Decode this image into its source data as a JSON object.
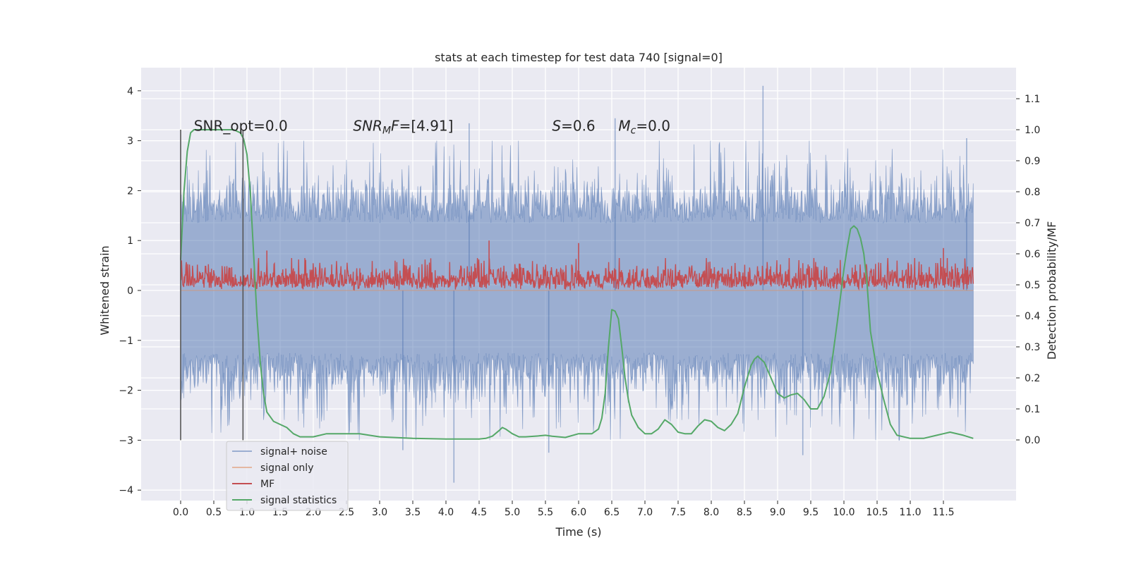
{
  "chart_data": {
    "type": "line",
    "title": "stats at each timestep for test data 740 [signal=0]",
    "xlabel": "Time (s)",
    "ylabel": "Whitened strain",
    "ylabel_right": "Detection probability/MF",
    "xlim": [
      -0.58,
      12.6
    ],
    "ylim": [
      -4.3,
      4.45
    ],
    "ylim_right": [
      -0.2,
      1.2
    ],
    "x_ticks": [
      0.0,
      0.5,
      1.0,
      1.5,
      2.0,
      2.5,
      3.0,
      3.5,
      4.0,
      4.5,
      5.0,
      5.5,
      6.0,
      6.5,
      7.0,
      7.5,
      8.0,
      8.5,
      9.0,
      9.5,
      10.0,
      10.5,
      11.0,
      11.5
    ],
    "x_tick_labels": [
      "0.0",
      "0.5",
      "1.0",
      "1.5",
      "2.0",
      "2.5",
      "3.0",
      "3.5",
      "4.0",
      "4.5",
      "5.0",
      "5.5",
      "6.0",
      "6.5",
      "7.0",
      "7.5",
      "8.0",
      "8.5",
      "9.0",
      "9.5",
      "10.0",
      "10.5",
      "11.0",
      "11.5"
    ],
    "y_ticks": [
      -4,
      -3,
      -2,
      -1,
      0,
      1,
      2,
      3,
      4
    ],
    "y_tick_labels": [
      "−4",
      "−3",
      "−2",
      "−1",
      "0",
      "1",
      "2",
      "3",
      "4"
    ],
    "y_ticks_right": [
      0.0,
      0.1,
      0.2,
      0.3,
      0.4,
      0.5,
      0.6,
      0.7,
      0.8,
      0.9,
      1.0,
      1.1
    ],
    "y_tick_labels_right": [
      "0.0",
      "0.1",
      "0.2",
      "0.3",
      "0.4",
      "0.5",
      "0.6",
      "0.7",
      "0.8",
      "0.9",
      "1.0",
      "1.1"
    ],
    "grid": true,
    "legend_position": "lower-left",
    "annotations": [
      {
        "text": "SNR_opt=0.0",
        "x": 0.2,
        "y": 3.2
      },
      {
        "text": "SNR_M F=[4.91]",
        "x": 2.6,
        "y": 3.2
      },
      {
        "text": "S=0.6",
        "x": 5.6,
        "y": 3.2
      },
      {
        "text": "M_c=0.0",
        "x": 6.6,
        "y": 3.2
      }
    ],
    "window_lines_x": [
      0.0,
      0.94
    ],
    "window_lines_y": [
      -3.0,
      3.22
    ],
    "series": [
      {
        "name": "signal+ noise",
        "color": "#4c72b0",
        "opacity": 0.5,
        "axis": "left",
        "x_range": [
          0.0,
          11.95
        ],
        "band_typical": [
          -1.25,
          1.35
        ],
        "band_peaks": [
          -3.0,
          3.0
        ],
        "spikes": [
          {
            "x": 8.78,
            "y": 4.1
          },
          {
            "x": 6.55,
            "y": 3.45
          },
          {
            "x": 4.35,
            "y": 3.35
          },
          {
            "x": 11.85,
            "y": 3.05
          },
          {
            "x": 4.12,
            "y": -3.85
          },
          {
            "x": 9.38,
            "y": -3.3
          },
          {
            "x": 5.55,
            "y": -3.25
          },
          {
            "x": 3.35,
            "y": -3.2
          }
        ]
      },
      {
        "name": "signal only",
        "color": "#dd8452",
        "opacity": 0.5,
        "axis": "left",
        "x": [
          0.0,
          11.95
        ],
        "y": [
          0.0,
          0.0
        ]
      },
      {
        "name": "MF",
        "color": "#c44e52",
        "opacity": 1.0,
        "axis": "left",
        "x_range": [
          0.0,
          11.95
        ],
        "band": [
          0.0,
          0.65
        ],
        "spikes": [
          {
            "x": 4.65,
            "y": 1.0
          },
          {
            "x": 6.0,
            "y": 0.95
          },
          {
            "x": 11.5,
            "y": 0.85
          },
          {
            "x": 1.3,
            "y": 0.8
          }
        ]
      },
      {
        "name": "signal statistics",
        "color": "#55a868",
        "opacity": 1.0,
        "axis": "right",
        "x": [
          0.0,
          0.05,
          0.1,
          0.15,
          0.2,
          0.3,
          0.5,
          0.8,
          0.9,
          0.95,
          1.0,
          1.05,
          1.1,
          1.15,
          1.2,
          1.25,
          1.3,
          1.4,
          1.5,
          1.6,
          1.7,
          1.8,
          2.0,
          2.2,
          2.4,
          2.7,
          3.0,
          3.5,
          4.0,
          4.5,
          4.6,
          4.7,
          4.8,
          4.85,
          4.9,
          5.0,
          5.1,
          5.2,
          5.4,
          5.5,
          5.6,
          5.8,
          6.0,
          6.2,
          6.3,
          6.35,
          6.4,
          6.45,
          6.5,
          6.55,
          6.6,
          6.65,
          6.7,
          6.75,
          6.8,
          6.9,
          7.0,
          7.1,
          7.2,
          7.3,
          7.4,
          7.5,
          7.6,
          7.7,
          7.8,
          7.9,
          8.0,
          8.1,
          8.2,
          8.3,
          8.4,
          8.5,
          8.6,
          8.65,
          8.7,
          8.8,
          8.9,
          9.0,
          9.1,
          9.2,
          9.3,
          9.4,
          9.5,
          9.6,
          9.7,
          9.8,
          9.9,
          10.0,
          10.05,
          10.1,
          10.15,
          10.2,
          10.25,
          10.3,
          10.35,
          10.4,
          10.5,
          10.6,
          10.7,
          10.8,
          11.0,
          11.2,
          11.4,
          11.5,
          11.6,
          11.8,
          11.95
        ],
        "y": [
          0.58,
          0.8,
          0.93,
          0.99,
          1.0,
          1.0,
          1.0,
          1.0,
          0.99,
          0.97,
          0.92,
          0.8,
          0.6,
          0.4,
          0.25,
          0.15,
          0.09,
          0.06,
          0.05,
          0.04,
          0.02,
          0.01,
          0.01,
          0.02,
          0.02,
          0.02,
          0.01,
          0.005,
          0.003,
          0.003,
          0.005,
          0.012,
          0.03,
          0.04,
          0.035,
          0.02,
          0.01,
          0.01,
          0.013,
          0.015,
          0.012,
          0.008,
          0.02,
          0.02,
          0.035,
          0.07,
          0.15,
          0.3,
          0.42,
          0.415,
          0.39,
          0.3,
          0.2,
          0.13,
          0.08,
          0.04,
          0.02,
          0.02,
          0.035,
          0.065,
          0.05,
          0.025,
          0.02,
          0.02,
          0.045,
          0.065,
          0.06,
          0.04,
          0.03,
          0.05,
          0.085,
          0.17,
          0.24,
          0.26,
          0.27,
          0.25,
          0.2,
          0.15,
          0.135,
          0.145,
          0.15,
          0.13,
          0.1,
          0.1,
          0.14,
          0.22,
          0.38,
          0.55,
          0.62,
          0.68,
          0.69,
          0.68,
          0.65,
          0.6,
          0.5,
          0.35,
          0.22,
          0.13,
          0.05,
          0.015,
          0.005,
          0.005,
          0.015,
          0.02,
          0.025,
          0.015,
          0.005
        ]
      }
    ]
  }
}
